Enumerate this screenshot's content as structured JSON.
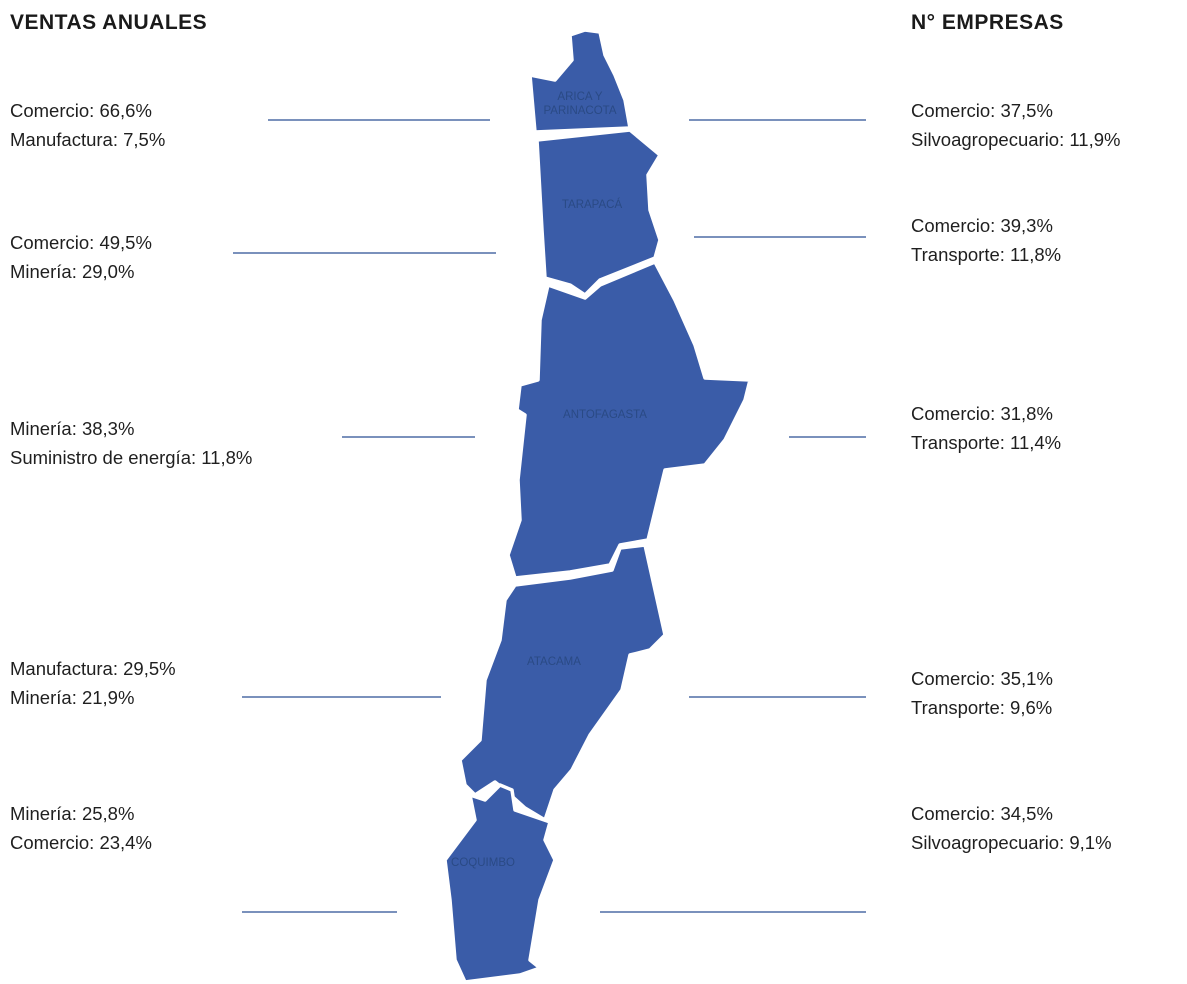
{
  "header": {
    "left": "VENTAS ANUALES",
    "right": "N° EMPRESAS"
  },
  "regions": [
    {
      "name": [
        "ARICA Y",
        "PARINACOTA"
      ],
      "ventas": [
        "Comercio: 66,6%",
        "Manufactura: 7,5%"
      ],
      "empresas": [
        "Comercio: 37,5%",
        "Silvoagropecuario: 11,9%"
      ]
    },
    {
      "name": [
        "TARAPACÁ"
      ],
      "ventas": [
        "Comercio: 49,5%",
        "Minería: 29,0%"
      ],
      "empresas": [
        "Comercio: 39,3%",
        "Transporte: 11,8%"
      ]
    },
    {
      "name": [
        "ANTOFAGASTA"
      ],
      "ventas": [
        "Minería: 38,3%",
        "Suministro de energía: 11,8%"
      ],
      "empresas": [
        "Comercio: 31,8%",
        "Transporte: 11,4%"
      ]
    },
    {
      "name": [
        "ATACAMA"
      ],
      "ventas": [
        "Manufactura: 29,5%",
        "Minería: 21,9%"
      ],
      "empresas": [
        "Comercio: 35,1%",
        "Transporte: 9,6%"
      ]
    },
    {
      "name": [
        "COQUIMBO"
      ],
      "ventas": [
        "Minería: 25,8%",
        "Comercio: 23,4%"
      ],
      "empresas": [
        "Comercio: 34,5%",
        "Silvoagropecuario: 9,1%"
      ]
    }
  ]
}
